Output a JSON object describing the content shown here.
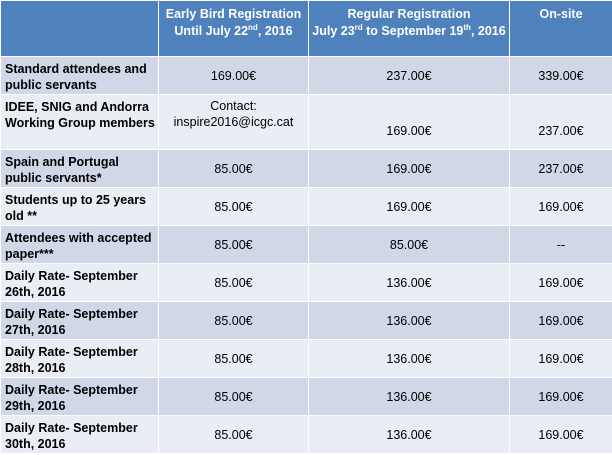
{
  "header": {
    "col0": "",
    "early_bird": {
      "line1": "Early Bird Registration",
      "line2_prefix": "Until July 22",
      "line2_sup": "nd",
      "line2_suffix": ", 2016"
    },
    "regular": {
      "line1": "Regular Registration",
      "line2_prefix": "July 23",
      "line2_sup1": "rd",
      "line2_mid": " to September 19",
      "line2_sup2": "th",
      "line2_suffix": ", 2016"
    },
    "onsite": "On-site"
  },
  "rows": [
    {
      "label": "Standard attendees and public servants",
      "early": "169.00€",
      "regular": "237.00€",
      "onsite": "339.00€"
    },
    {
      "label": "IDEE, SNIG and Andorra Working Group members",
      "early_contact_label": "Contact:",
      "early_contact_email": "inspire2016@icgc.cat",
      "regular": "169.00€",
      "onsite": "237.00€"
    },
    {
      "label": "Spain and Portugal public servants*",
      "early": "85.00€",
      "regular": "169.00€",
      "onsite": "237.00€"
    },
    {
      "label": "Students up to 25 years old **",
      "early": "85.00€",
      "regular": "169.00€",
      "onsite": "169.00€"
    },
    {
      "label": "Attendees with accepted paper***",
      "early": "85.00€",
      "regular": "85.00€",
      "onsite": "--"
    },
    {
      "label": "Daily Rate- September 26th, 2016",
      "early": "85.00€",
      "regular": "136.00€",
      "onsite": "169.00€"
    },
    {
      "label": "Daily Rate- September 27th, 2016",
      "early": "85.00€",
      "regular": "136.00€",
      "onsite": "169.00€"
    },
    {
      "label": "Daily Rate- September 28th, 2016",
      "early": "85.00€",
      "regular": "136.00€",
      "onsite": "169.00€"
    },
    {
      "label": "Daily Rate- September 29th, 2016",
      "early": "85.00€",
      "regular": "136.00€",
      "onsite": "169.00€"
    },
    {
      "label": "Daily Rate- September 30th, 2016",
      "early": "85.00€",
      "regular": "136.00€",
      "onsite": "169.00€"
    }
  ]
}
